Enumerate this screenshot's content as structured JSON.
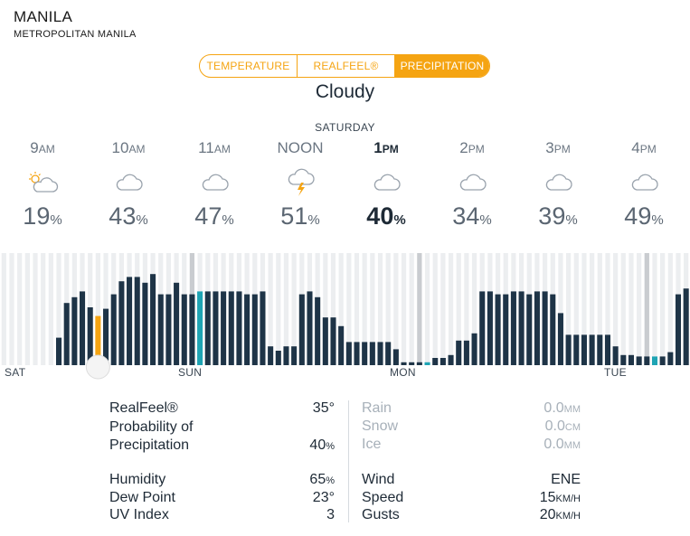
{
  "location": {
    "city": "MANILA",
    "region": "METROPOLITAN MANILA"
  },
  "tabs": [
    {
      "label": "TEMPERATURE",
      "active": false
    },
    {
      "label": "REALFEEL®",
      "active": false
    },
    {
      "label": "PRECIPITATION",
      "active": true
    }
  ],
  "condition": "Cloudy",
  "day_label": "SATURDAY",
  "hours": [
    {
      "time": "9",
      "suffix": "AM",
      "icon": "partly-sunny-icon",
      "pct": "19",
      "selected": false
    },
    {
      "time": "10",
      "suffix": "AM",
      "icon": "cloud-icon",
      "pct": "43",
      "selected": false
    },
    {
      "time": "11",
      "suffix": "AM",
      "icon": "cloud-icon",
      "pct": "47",
      "selected": false
    },
    {
      "time": "NOON",
      "suffix": "",
      "icon": "thunderstorm-icon",
      "pct": "51",
      "selected": false
    },
    {
      "time": "1",
      "suffix": "PM",
      "icon": "cloud-icon",
      "pct": "40",
      "selected": true
    },
    {
      "time": "2",
      "suffix": "PM",
      "icon": "cloud-icon",
      "pct": "34",
      "selected": false
    },
    {
      "time": "3",
      "suffix": "PM",
      "icon": "cloud-icon",
      "pct": "39",
      "selected": false
    },
    {
      "time": "4",
      "suffix": "PM",
      "icon": "cloud-icon",
      "pct": "49",
      "selected": false
    }
  ],
  "pct_unit": "%",
  "timeline": {
    "day_labels": [
      "SAT",
      "SUN",
      "MON",
      "TUE"
    ],
    "values": [
      0,
      0,
      0,
      0,
      0,
      0,
      0,
      19,
      43,
      47,
      51,
      40,
      34,
      39,
      49,
      58,
      61,
      61,
      57,
      63,
      49,
      49,
      57,
      49,
      49,
      51,
      51,
      51,
      51,
      51,
      51,
      49,
      49,
      51,
      13,
      10,
      13,
      13,
      49,
      51,
      47,
      33,
      33,
      27,
      16,
      16,
      16,
      16,
      16,
      16,
      11,
      2,
      2,
      2,
      2,
      5,
      5,
      7,
      17,
      17,
      22,
      51,
      51,
      49,
      49,
      51,
      51,
      49,
      51,
      51,
      49,
      36,
      21,
      21,
      21,
      21,
      21,
      21,
      13,
      7,
      7,
      6,
      6,
      6,
      6,
      9,
      49,
      53
    ],
    "highlight": {
      "orange": [
        12
      ],
      "teal": [
        25,
        54,
        83
      ]
    },
    "colors": {
      "bar": "#1e3447",
      "orange": "#f5a412",
      "teal": "#1ea4b4",
      "stripe": "#eceef0",
      "divider": "#c9ccd0"
    }
  },
  "details": {
    "realfeel_label": "RealFeel®",
    "realfeel_value": "35°",
    "precip_label_1": "Probability of",
    "precip_label_2": "Precipitation",
    "precip_value": "40",
    "precip_unit": "%",
    "humidity_label": "Humidity",
    "humidity_value": "65",
    "humidity_unit": "%",
    "dewpoint_label": "Dew Point",
    "dewpoint_value": "23°",
    "uv_label": "UV Index",
    "uv_value": "3",
    "rain_label": "Rain",
    "rain_value": "0.0",
    "rain_unit": "MM",
    "snow_label": "Snow",
    "snow_value": "0.0",
    "snow_unit": "CM",
    "ice_label": "Ice",
    "ice_value": "0.0",
    "ice_unit": "MM",
    "wind_label": "Wind",
    "wind_value": "ENE",
    "speed_label": "Speed",
    "speed_value": "15",
    "speed_unit": "KM/H",
    "gusts_label": "Gusts",
    "gusts_value": "20",
    "gusts_unit": "KM/H"
  }
}
